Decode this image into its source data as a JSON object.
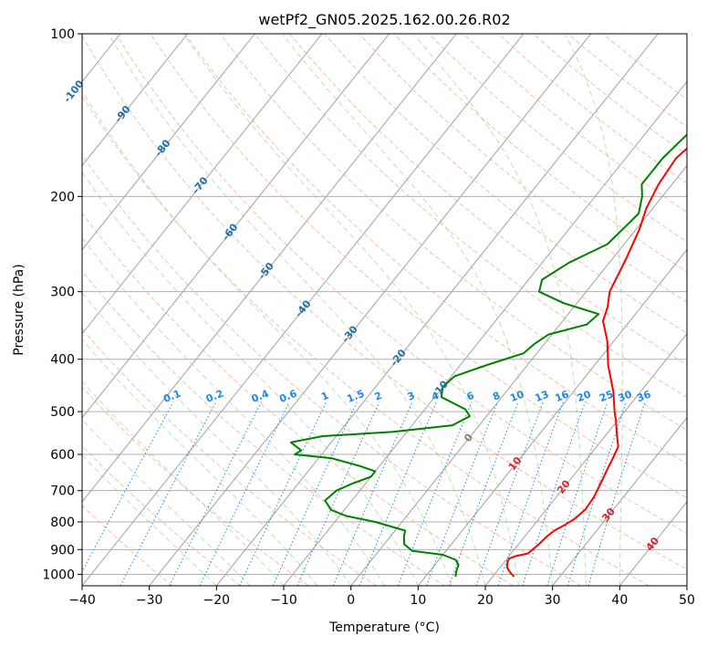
{
  "chart_data": {
    "type": "line",
    "title": "wetPf2_GN05.2025.162.00.26.R02",
    "xlabel": "Temperature (°C)",
    "ylabel": "Pressure (hPa)",
    "xlim": [
      -40,
      50
    ],
    "ylim": [
      1050,
      100
    ],
    "yscale": "log",
    "grid": true,
    "xticks": [
      -40,
      -30,
      -20,
      -10,
      0,
      10,
      20,
      30,
      40,
      50
    ],
    "yticks": [
      1000,
      900,
      800,
      700,
      600,
      500,
      400,
      300,
      200,
      100
    ],
    "colors": {
      "temperature": "#ff0000",
      "dewpoint": "#008000",
      "isotherm": "#a0a0a0",
      "dry_adiabat": "#f4a582",
      "moist_adiabat": "#8fcf8f",
      "mixing_ratio": "#1e88e5",
      "isotherm_label": "#1f6fa8",
      "dry_adiabat_label": "#d62728"
    },
    "series": [
      {
        "role": "temperature",
        "points": [
          [
            23.2,
            1010
          ],
          [
            22.0,
            990
          ],
          [
            21.0,
            970
          ],
          [
            20.5,
            950
          ],
          [
            20.3,
            935
          ],
          [
            21.0,
            925
          ],
          [
            22.5,
            915
          ],
          [
            23.0,
            880
          ],
          [
            23.3,
            850
          ],
          [
            23.7,
            830
          ],
          [
            24.6,
            810
          ],
          [
            25.3,
            790
          ],
          [
            25.8,
            760
          ],
          [
            25.6,
            720
          ],
          [
            25.0,
            680
          ],
          [
            24.3,
            640
          ],
          [
            23.8,
            610
          ],
          [
            23.2,
            580
          ],
          [
            21.5,
            550
          ],
          [
            19.8,
            520
          ],
          [
            18.5,
            500
          ],
          [
            16.0,
            460
          ],
          [
            12.0,
            410
          ],
          [
            9.0,
            370
          ],
          [
            6.0,
            340
          ],
          [
            5.0,
            320
          ],
          [
            3.5,
            300
          ],
          [
            2.0,
            260
          ],
          [
            0.5,
            230
          ],
          [
            -1.0,
            210
          ],
          [
            -2.0,
            190
          ],
          [
            -2.5,
            170
          ],
          [
            -1.5,
            155
          ],
          [
            2.0,
            140
          ],
          [
            6.0,
            128
          ],
          [
            9.5,
            118
          ],
          [
            10.5,
            112
          ],
          [
            12.0,
            106
          ],
          [
            13.5,
            100
          ]
        ]
      },
      {
        "role": "dewpoint",
        "points": [
          [
            14.5,
            1010
          ],
          [
            14.0,
            990
          ],
          [
            13.5,
            960
          ],
          [
            12.5,
            940
          ],
          [
            10.0,
            920
          ],
          [
            5.0,
            905
          ],
          [
            3.0,
            880
          ],
          [
            2.0,
            850
          ],
          [
            1.5,
            830
          ],
          [
            -4.0,
            800
          ],
          [
            -9.0,
            780
          ],
          [
            -12.0,
            760
          ],
          [
            -14.0,
            730
          ],
          [
            -13.5,
            700
          ],
          [
            -12.0,
            680
          ],
          [
            -10.0,
            660
          ],
          [
            -10.0,
            645
          ],
          [
            -13.0,
            630
          ],
          [
            -18.0,
            610
          ],
          [
            -24.0,
            600
          ],
          [
            -23.5,
            590
          ],
          [
            -26.0,
            570
          ],
          [
            -22.0,
            555
          ],
          [
            -12.0,
            545
          ],
          [
            -4.0,
            530
          ],
          [
            -2.5,
            510
          ],
          [
            -4.0,
            495
          ],
          [
            -9.0,
            470
          ],
          [
            -10.0,
            450
          ],
          [
            -9.5,
            430
          ],
          [
            -6.0,
            410
          ],
          [
            -2.0,
            390
          ],
          [
            -1.5,
            375
          ],
          [
            -0.5,
            360
          ],
          [
            4.0,
            345
          ],
          [
            4.5,
            330
          ],
          [
            -2.0,
            315
          ],
          [
            -7.0,
            300
          ],
          [
            -8.0,
            285
          ],
          [
            -6.0,
            265
          ],
          [
            -2.5,
            245
          ],
          [
            -2.0,
            230
          ],
          [
            -1.5,
            215
          ],
          [
            -3.0,
            200
          ],
          [
            -4.5,
            190
          ],
          [
            -4.5,
            170
          ],
          [
            -3.5,
            150
          ],
          [
            -5.0,
            135
          ],
          [
            -5.0,
            125
          ],
          [
            -3.5,
            115
          ],
          [
            -2.0,
            106
          ],
          [
            -1.0,
            100
          ]
        ]
      }
    ],
    "isotherm_labels": [
      "-100",
      "-90",
      "-80",
      "-70",
      "-60",
      "-50",
      "-40",
      "-30",
      "-20",
      "-10",
      "0",
      "10",
      "20",
      "30",
      "40"
    ],
    "mixing_ratio_labels": [
      "0.1",
      "0.2",
      "0.4",
      "0.6",
      "1",
      "1.5",
      "2",
      "3",
      "4",
      "6",
      "8",
      "10",
      "13",
      "16",
      "20",
      "25",
      "30",
      "36"
    ]
  }
}
